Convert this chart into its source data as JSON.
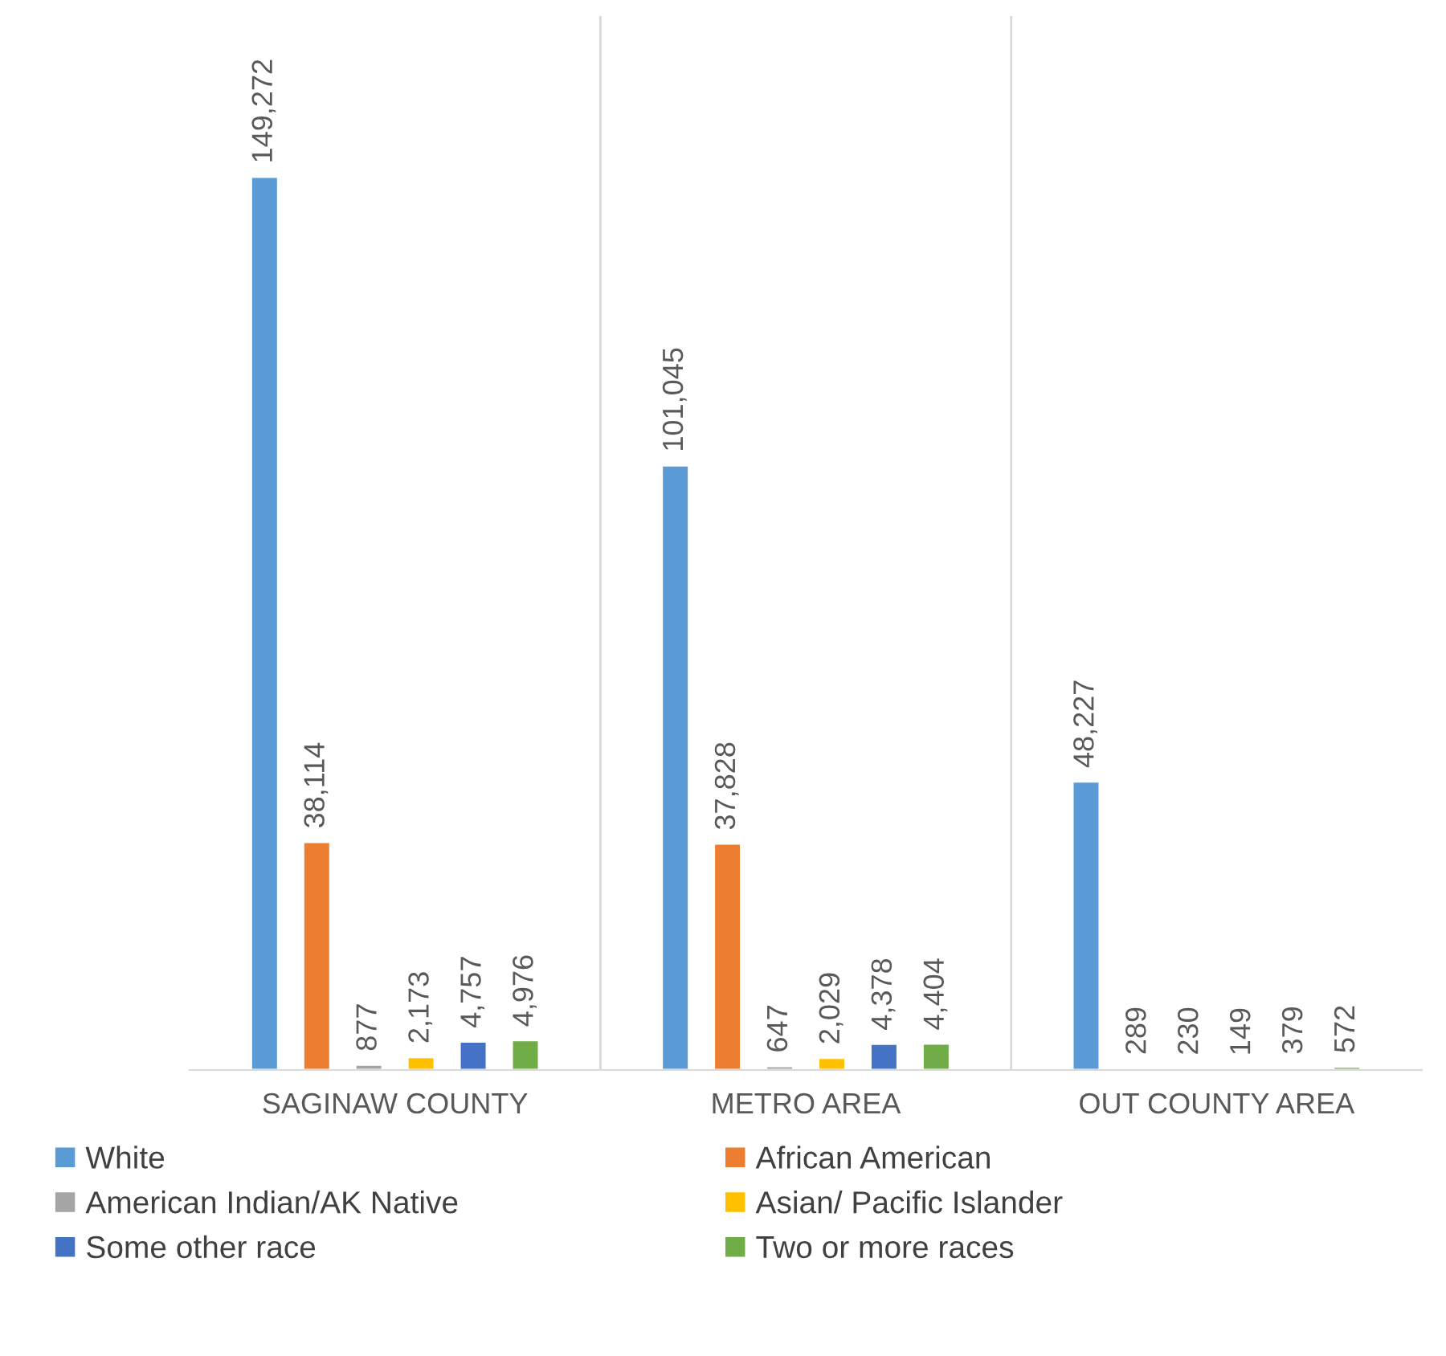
{
  "chart_data": {
    "type": "bar",
    "categories": [
      "SAGINAW COUNTY",
      "METRO AREA",
      "OUT COUNTY AREA"
    ],
    "series": [
      {
        "name": "White",
        "color": "#5b9bd5",
        "values": [
          149272,
          101045,
          48227
        ],
        "value_labels": [
          "149,272",
          "101,045",
          "48,227"
        ]
      },
      {
        "name": "African American",
        "color": "#ed7d31",
        "values": [
          38114,
          37828,
          289
        ],
        "value_labels": [
          "38,114",
          "37,828",
          "289"
        ]
      },
      {
        "name": "American Indian/AK Native",
        "color": "#a5a5a5",
        "values": [
          877,
          647,
          230
        ],
        "value_labels": [
          "877",
          "647",
          "230"
        ]
      },
      {
        "name": "Asian/ Pacific Islander",
        "color": "#ffc000",
        "values": [
          2173,
          2029,
          149
        ],
        "value_labels": [
          "2,173",
          "2,029",
          "149"
        ]
      },
      {
        "name": "Some other race",
        "color": "#4472c4",
        "values": [
          4757,
          4378,
          379
        ],
        "value_labels": [
          "4,757",
          "4,378",
          "379"
        ]
      },
      {
        "name": "Two or more races",
        "color": "#70ad47",
        "values": [
          4976,
          4404,
          572
        ],
        "value_labels": [
          "4,976",
          "4,404",
          "572"
        ]
      }
    ],
    "grid": "x",
    "legend": "bottom",
    "tick_labels": "x"
  }
}
